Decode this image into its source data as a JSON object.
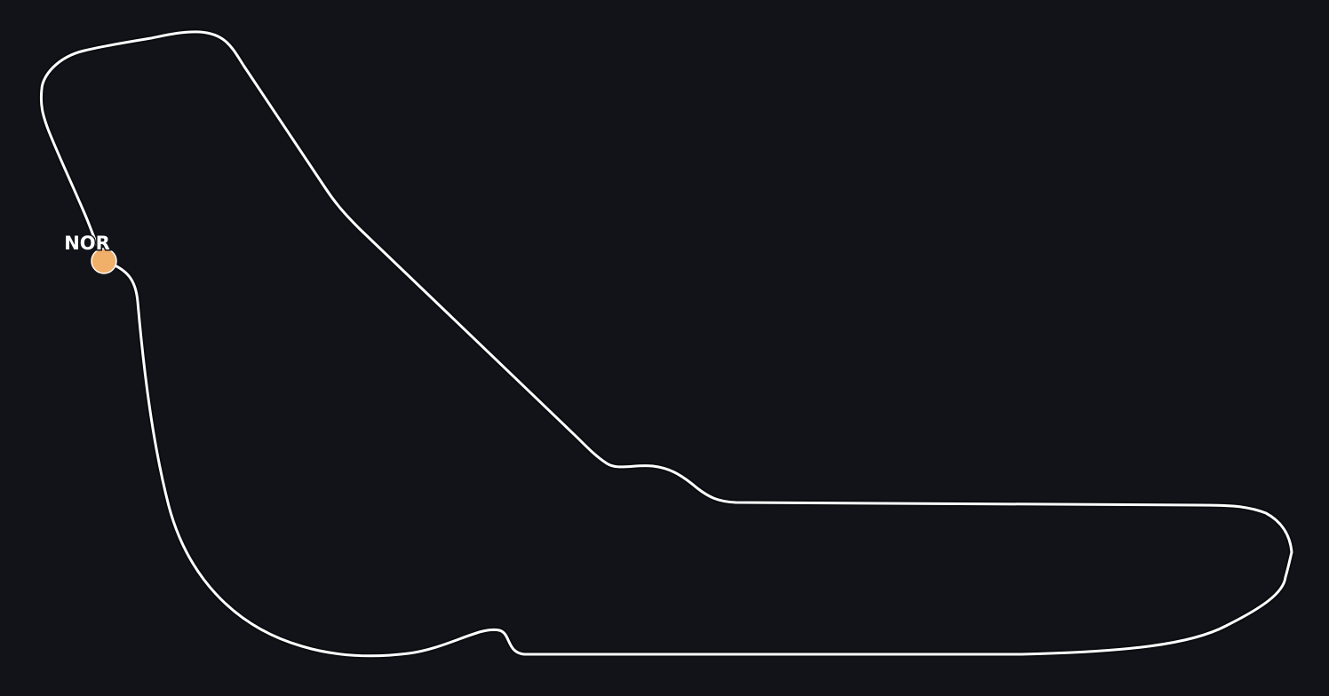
{
  "map": {
    "background_color": "#111318",
    "track": {
      "line_color": "#ffffff"
    },
    "cars": [
      {
        "driver": "NOR",
        "color": "#f0b06a"
      }
    ]
  }
}
